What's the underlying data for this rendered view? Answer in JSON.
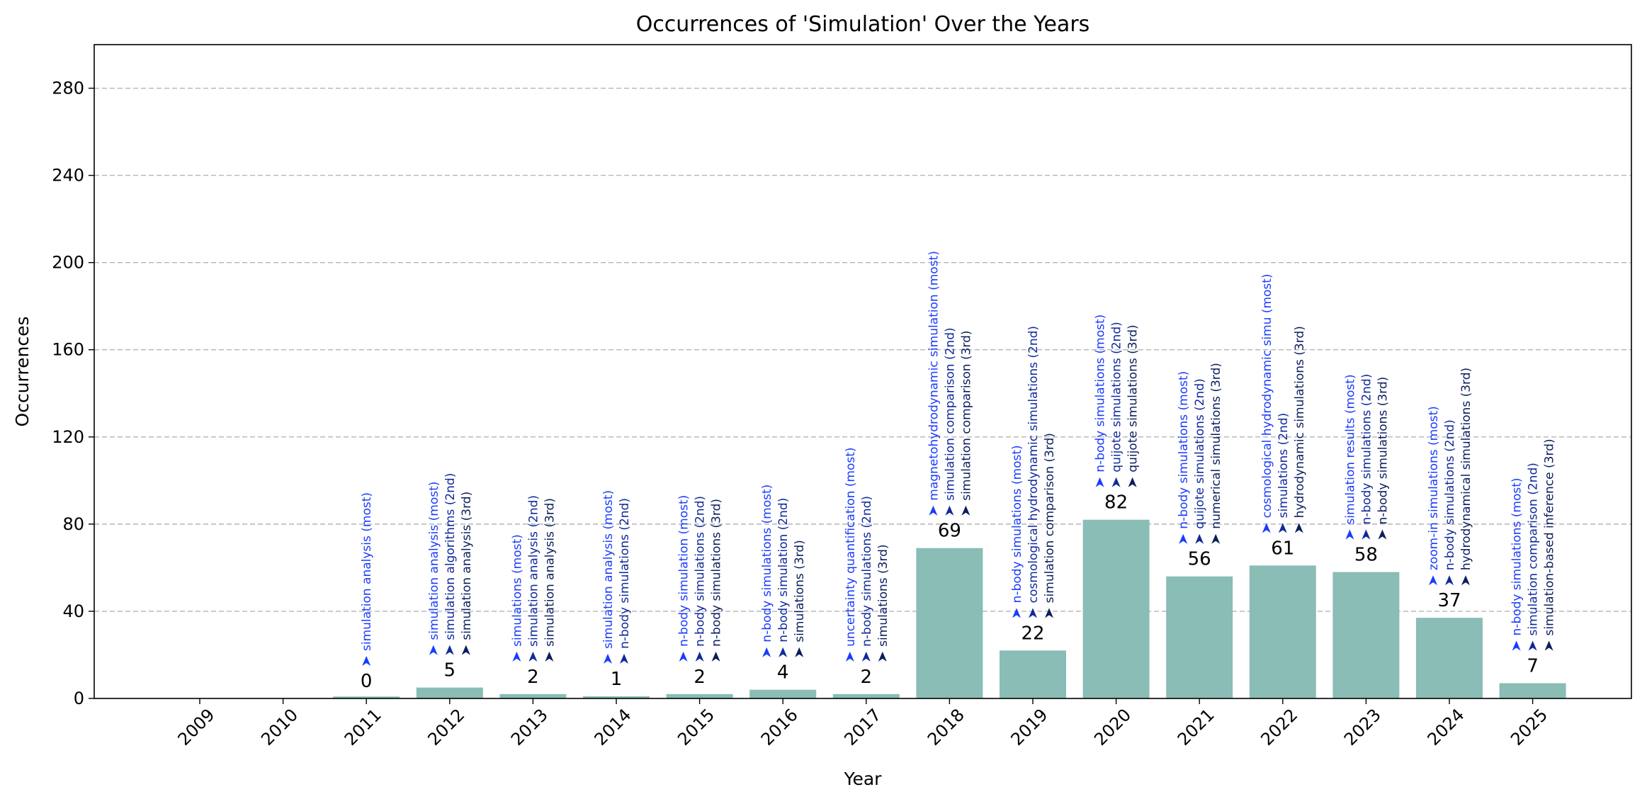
{
  "chart_data": {
    "type": "bar",
    "title": "Occurrences of 'Simulation' Over the Years",
    "xlabel": "Year",
    "ylabel": "Occurrences",
    "ylim": [
      0,
      300
    ],
    "yticks": [
      0,
      40,
      80,
      120,
      160,
      200,
      240,
      280
    ],
    "grid": "horizontal dashed",
    "bar_color": "#89bdb6",
    "keyword_colors": [
      "#1a3cff",
      "#102a9a",
      "#0b1e5c"
    ],
    "categories": [
      "2009",
      "2010",
      "2011",
      "2012",
      "2013",
      "2014",
      "2015",
      "2016",
      "2017",
      "2018",
      "2019",
      "2020",
      "2021",
      "2022",
      "2023",
      "2024",
      "2025"
    ],
    "values": [
      null,
      null,
      0,
      5,
      2,
      1,
      2,
      4,
      2,
      69,
      22,
      82,
      56,
      61,
      58,
      37,
      7
    ],
    "top_keywords": [
      [],
      [],
      [
        "simulation analysis (most)"
      ],
      [
        "simulation analysis (most)",
        "simulation algorithms (2nd)",
        "simulation analysis (3rd)"
      ],
      [
        "simulations (most)",
        "simulation analysis (2nd)",
        "simulation analysis (3rd)"
      ],
      [
        "simulation analysis (most)",
        "n-body simulations (2nd)"
      ],
      [
        "n-body simulation (most)",
        "n-body simulations (2nd)",
        "n-body simulations (3rd)"
      ],
      [
        "n-body simulations (most)",
        "n-body simulation (2nd)",
        "simulations (3rd)"
      ],
      [
        "uncertainty quantification (most)",
        "n-body simulations (2nd)",
        "simulations (3rd)"
      ],
      [
        "magnetohydrodynamic simulation (most)",
        "simulation comparison (2nd)",
        "simulation comparison (3rd)"
      ],
      [
        "n-body simulations (most)",
        "cosmological hydrodynamic simulations (2nd)",
        "simulation comparison (3rd)"
      ],
      [
        "n-body simulations (most)",
        "quijote simulations (2nd)",
        "quijote simulations (3rd)"
      ],
      [
        "n-body simulations (most)",
        "quijote simulations (2nd)",
        "numerical simulations (3rd)"
      ],
      [
        "cosmological hydrodynamic simu (most)",
        "simulations (2nd)",
        "hydrodynamic simulations (3rd)"
      ],
      [
        "simulation results (most)",
        "n-body simulations (2nd)",
        "n-body simulations (3rd)"
      ],
      [
        "zoom-in simulations (most)",
        "n-body simulations (2nd)",
        "hydrodynamical simulations (3rd)"
      ],
      [
        "n-body simulations (most)",
        "simulation comparison (2nd)",
        "simulation-based inference (3rd)"
      ]
    ]
  }
}
